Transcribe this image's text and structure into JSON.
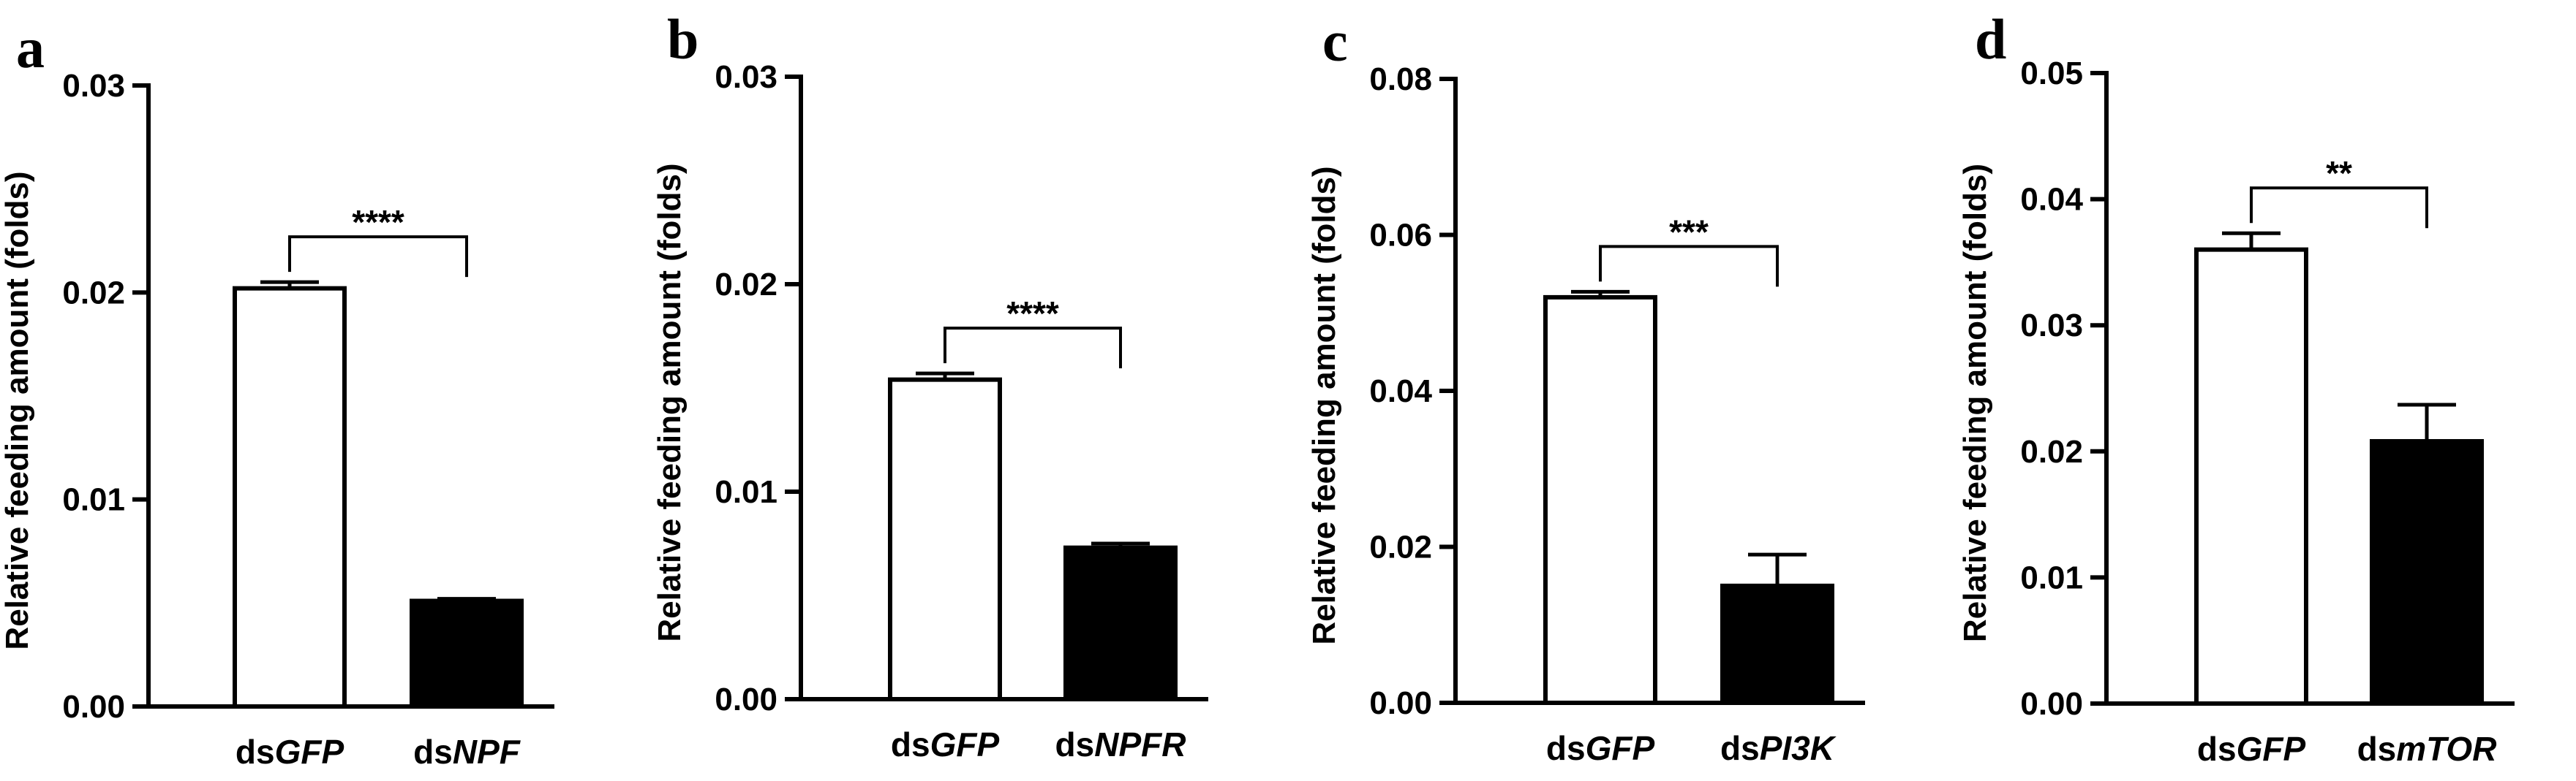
{
  "chart_data": [
    {
      "type": "bar",
      "panel": "a",
      "categories": [
        {
          "prefix": "ds",
          "gene": "GFP"
        },
        {
          "prefix": "ds",
          "gene": "NPF"
        }
      ],
      "values": [
        0.0202,
        0.0051
      ],
      "errors": [
        0.0003,
        0.0001
      ],
      "fill_colors": [
        "#ffffff",
        "#000000"
      ],
      "ylabel": "Relative feeding amount (folds)",
      "ylim": [
        0,
        0.03
      ],
      "yticks": [
        0,
        0.01,
        0.02,
        0.03
      ],
      "ytick_labels": [
        "0.00",
        "0.01",
        "0.02",
        "0.03"
      ],
      "significance": "****",
      "grid": false
    },
    {
      "type": "bar",
      "panel": "b",
      "categories": [
        {
          "prefix": "ds",
          "gene": "GFP"
        },
        {
          "prefix": "ds",
          "gene": "NPFR"
        }
      ],
      "values": [
        0.0154,
        0.0073
      ],
      "errors": [
        0.0003,
        0.0002
      ],
      "fill_colors": [
        "#ffffff",
        "#000000"
      ],
      "ylabel": "Relative feeding amount (folds)",
      "ylim": [
        0,
        0.03
      ],
      "yticks": [
        0,
        0.01,
        0.02,
        0.03
      ],
      "ytick_labels": [
        "0.00",
        "0.01",
        "0.02",
        "0.03"
      ],
      "significance": "****",
      "grid": false
    },
    {
      "type": "bar",
      "panel": "c",
      "categories": [
        {
          "prefix": "ds",
          "gene": "GFP"
        },
        {
          "prefix": "ds",
          "gene": "PI3K"
        }
      ],
      "values": [
        0.052,
        0.015
      ],
      "errors": [
        0.0007,
        0.004
      ],
      "fill_colors": [
        "#ffffff",
        "#000000"
      ],
      "ylabel": "Relative feeding amount (folds)",
      "ylim": [
        0,
        0.08
      ],
      "yticks": [
        0,
        0.02,
        0.04,
        0.06,
        0.08
      ],
      "ytick_labels": [
        "0.00",
        "0.02",
        "0.04",
        "0.06",
        "0.08"
      ],
      "significance": "***",
      "grid": false
    },
    {
      "type": "bar",
      "panel": "d",
      "categories": [
        {
          "prefix": "ds",
          "gene": "GFP"
        },
        {
          "prefix": "ds",
          "gene": "mTOR"
        }
      ],
      "values": [
        0.036,
        0.0208
      ],
      "errors": [
        0.0013,
        0.0029
      ],
      "fill_colors": [
        "#ffffff",
        "#000000"
      ],
      "ylabel": "Relative feeding amount (folds)",
      "ylim": [
        0,
        0.05
      ],
      "yticks": [
        0,
        0.01,
        0.02,
        0.03,
        0.04,
        0.05
      ],
      "ytick_labels": [
        "0.00",
        "0.01",
        "0.02",
        "0.03",
        "0.04",
        "0.05"
      ],
      "significance": "**",
      "grid": false
    }
  ]
}
